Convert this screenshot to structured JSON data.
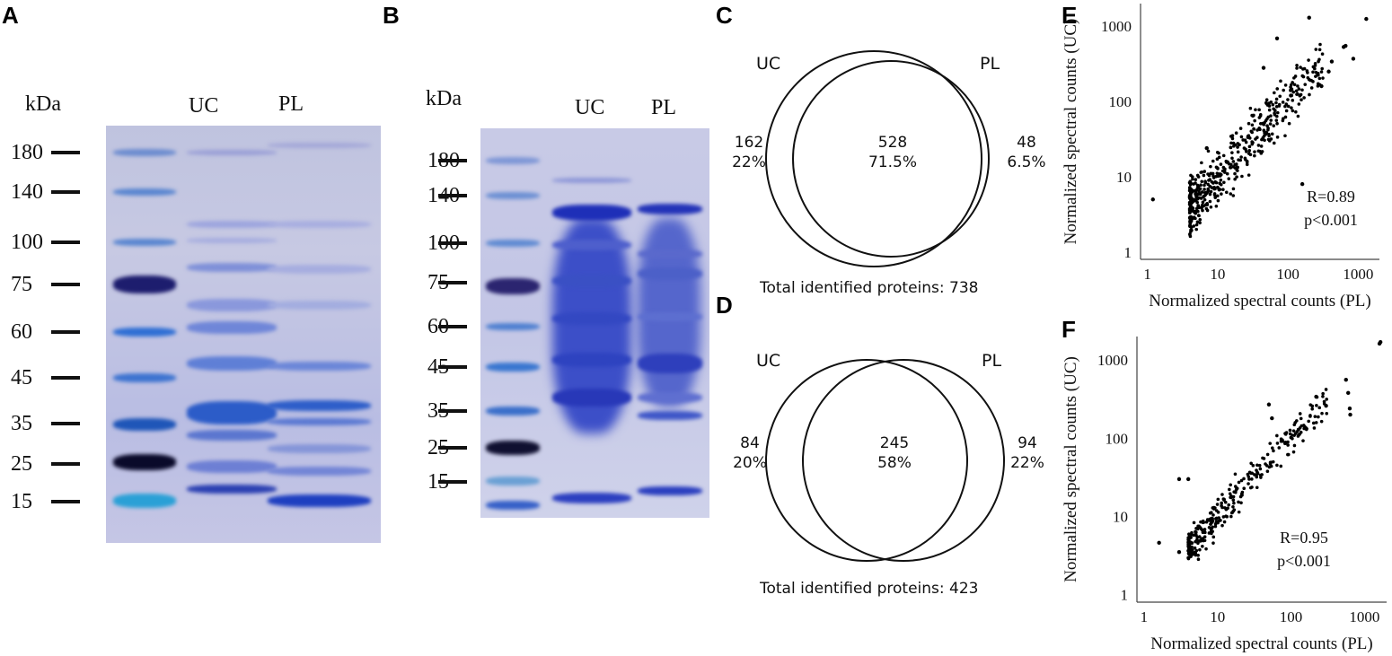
{
  "panels": {
    "a": "A",
    "b": "B",
    "c": "C",
    "d": "D",
    "e": "E",
    "f": "F"
  },
  "gel_a": {
    "kda_label": "kDa",
    "lane_uc": "UC",
    "lane_pl": "PL",
    "markers": [
      "180",
      "140",
      "100",
      "75",
      "60",
      "45",
      "35",
      "25",
      "15"
    ]
  },
  "gel_b": {
    "kda_label": "kDa",
    "lane_uc": "UC",
    "lane_pl": "PL",
    "markers": [
      "180",
      "140",
      "100",
      "75",
      "60",
      "45",
      "35",
      "25",
      "15"
    ]
  },
  "venn_c": {
    "left_label": "UC",
    "right_label": "PL",
    "left_count": "162",
    "left_pct": "22%",
    "center_count": "528",
    "center_pct": "71.5%",
    "right_count": "48",
    "right_pct": "6.5%",
    "total": "Total identified proteins: 738"
  },
  "venn_d": {
    "left_label": "UC",
    "right_label": "PL",
    "left_count": "84",
    "left_pct": "20%",
    "center_count": "245",
    "center_pct": "58%",
    "right_count": "94",
    "right_pct": "22%",
    "total": "Total identified proteins: 423"
  },
  "chart_data": [
    {
      "type": "scatter",
      "panel": "E",
      "xlabel": "Normalized spectral counts (PL)",
      "ylabel": "Normalized spectral counts (UC)",
      "xscale": "log",
      "yscale": "log",
      "xlim": [
        0.8,
        2000
      ],
      "ylim": [
        0.8,
        2000
      ],
      "xticks": [
        "1",
        "10",
        "100",
        "1000"
      ],
      "yticks": [
        "1",
        "10",
        "100",
        "1000"
      ],
      "annotation": [
        "R=0.89",
        "p<0.001"
      ],
      "correlation": 0.89,
      "outliers": [
        [
          1.2,
          5
        ],
        [
          6,
          4
        ],
        [
          7,
          24
        ],
        [
          200,
          1300
        ],
        [
          1300,
          1250
        ],
        [
          70,
          690
        ],
        [
          660,
          550
        ],
        [
          620,
          530
        ],
        [
          850,
          370
        ],
        [
          420,
          340
        ],
        [
          380,
          250
        ],
        [
          300,
          160
        ],
        [
          160,
          8
        ],
        [
          110,
          120
        ],
        [
          45,
          280
        ]
      ],
      "n_bulk_points": 480
    },
    {
      "type": "scatter",
      "panel": "F",
      "xlabel": "Normalized spectral counts (PL)",
      "ylabel": "Normalized spectral counts (UC)",
      "xscale": "log",
      "yscale": "log",
      "xlim": [
        0.8,
        2000
      ],
      "ylim": [
        0.8,
        2000
      ],
      "xticks": [
        "1",
        "10",
        "100",
        "1000"
      ],
      "yticks": [
        "1",
        "10",
        "100",
        "1000"
      ],
      "annotation": [
        "R=0.95",
        "p<0.001"
      ],
      "correlation": 0.95,
      "outliers": [
        [
          1.6,
          4.6
        ],
        [
          3,
          30
        ],
        [
          4,
          30
        ],
        [
          50,
          270
        ],
        [
          55,
          180
        ],
        [
          1600,
          1620
        ],
        [
          1650,
          1700
        ],
        [
          560,
          560
        ],
        [
          600,
          380
        ],
        [
          640,
          200
        ],
        [
          630,
          240
        ],
        [
          300,
          260
        ],
        [
          220,
          340
        ],
        [
          3,
          3.5
        ]
      ],
      "n_bulk_points": 300
    }
  ]
}
